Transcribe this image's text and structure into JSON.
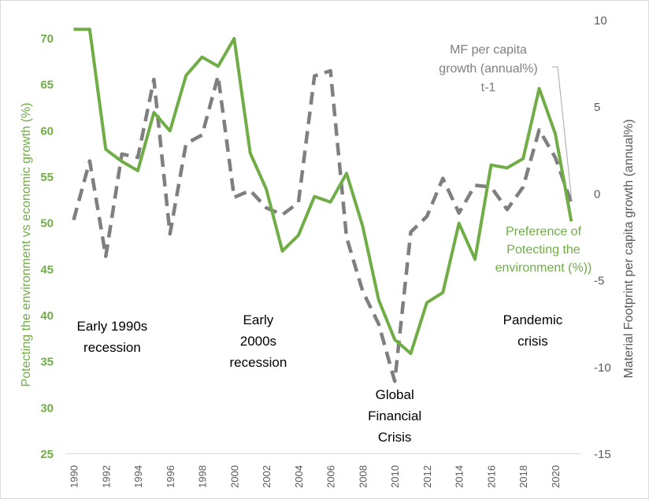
{
  "chart_data": {
    "type": "line",
    "title": "",
    "xlabel": "",
    "ylabel_left": "Potecting the environment vs economic growth (%)",
    "ylabel_right": "Material Footprint per capita growth (annual%)",
    "x": [
      1990,
      1991,
      1992,
      1993,
      1994,
      1995,
      1996,
      1997,
      1998,
      1999,
      2000,
      2001,
      2002,
      2003,
      2004,
      2005,
      2006,
      2007,
      2008,
      2009,
      2010,
      2011,
      2012,
      2013,
      2014,
      2015,
      2016,
      2017,
      2018,
      2019,
      2020,
      2021
    ],
    "x_tick_labels": [
      "1990",
      "1992",
      "1994",
      "1996",
      "1998",
      "2000",
      "2002",
      "2004",
      "2006",
      "2008",
      "2010",
      "2012",
      "2014",
      "2016",
      "2018",
      "2020"
    ],
    "ylim_left": [
      25,
      72
    ],
    "y_ticks_left": [
      "25",
      "30",
      "35",
      "40",
      "45",
      "50",
      "55",
      "60",
      "65",
      "70"
    ],
    "ylim_right": [
      -15,
      10
    ],
    "y_ticks_right": [
      "-15",
      "-10",
      "-5",
      "0",
      "5",
      "10"
    ],
    "grid": false,
    "series": [
      {
        "name": "Preference of Potecting the environment (%))",
        "axis": "left",
        "color": "#70ad47",
        "style": "solid",
        "values": [
          71,
          71,
          58,
          56.7,
          55.7,
          62,
          60,
          66,
          68,
          67,
          70,
          57.6,
          53.7,
          47,
          48.7,
          52.9,
          52.3,
          55.4,
          49.7,
          41.7,
          37.4,
          35.9,
          41.4,
          42.5,
          50,
          46.1,
          56.3,
          56,
          57,
          64.6,
          59.7,
          50.2
        ]
      },
      {
        "name": "MF per capita growth (annual%) t-1",
        "axis": "right",
        "color": "#7f7f7f",
        "style": "dashed",
        "values": [
          -1.5,
          1.9,
          -3.6,
          2.3,
          2.1,
          6.6,
          -2.3,
          2.9,
          3.4,
          6.8,
          -0.2,
          0.2,
          -0.8,
          -1.2,
          -0.5,
          6.8,
          7.1,
          -2.5,
          -5.6,
          -7.5,
          -10.8,
          -2.2,
          -1.3,
          0.9,
          -1.1,
          0.5,
          0.4,
          -0.9,
          0.4,
          3.7,
          2.1,
          -0.5
        ]
      }
    ],
    "series_labels": {
      "green": [
        "Preference of",
        "Potecting the",
        "environment (%))"
      ],
      "gray": [
        "MF per capita",
        "growth (annual%)",
        "t-1"
      ]
    },
    "annotations": [
      {
        "lines": [
          "Early 1990s",
          "recession"
        ],
        "year": 1992.4
      },
      {
        "lines": [
          "Early",
          "2000s",
          "recession"
        ],
        "year": 2001.5
      },
      {
        "lines": [
          "Global",
          "Financial",
          "Crisis"
        ],
        "year": 2010
      },
      {
        "lines": [
          "Pandemic",
          "crisis"
        ],
        "year": 2018.6
      }
    ]
  }
}
